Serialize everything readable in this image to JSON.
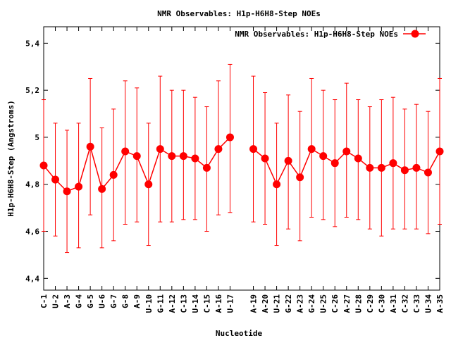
{
  "chart_data": {
    "type": "line",
    "title": "NMR Observables: H1p-H6H8-Step NOEs",
    "xlabel": "Nucleotide",
    "ylabel": "H1p-H6H8-Step (Angstroms)",
    "ylim": [
      4.35,
      5.47
    ],
    "yticks": [
      4.4,
      4.6,
      4.8,
      5,
      5.2,
      5.4
    ],
    "ytick_labels": [
      "4,4",
      "4,6",
      "4,8",
      "5",
      "5,2",
      "5,4"
    ],
    "legend_position": "top-right",
    "grid": false,
    "color": "#ff0000",
    "xticks": [
      {
        "label": "C-1",
        "pos": 1
      },
      {
        "label": "U-2",
        "pos": 2
      },
      {
        "label": "A-3",
        "pos": 3
      },
      {
        "label": "G-4",
        "pos": 4
      },
      {
        "label": "G-5",
        "pos": 5
      },
      {
        "label": "U-6",
        "pos": 6
      },
      {
        "label": "G-7",
        "pos": 7
      },
      {
        "label": "G-8",
        "pos": 8
      },
      {
        "label": "A-9",
        "pos": 9
      },
      {
        "label": "U-10",
        "pos": 10
      },
      {
        "label": "G-11",
        "pos": 11
      },
      {
        "label": "A-12",
        "pos": 12
      },
      {
        "label": "C-13",
        "pos": 13
      },
      {
        "label": "U-14",
        "pos": 14
      },
      {
        "label": "C-15",
        "pos": 15
      },
      {
        "label": "A-16",
        "pos": 16
      },
      {
        "label": "U-17",
        "pos": 17
      },
      {
        "label": "A-19",
        "pos": 19
      },
      {
        "label": "A-20",
        "pos": 20
      },
      {
        "label": "U-21",
        "pos": 21
      },
      {
        "label": "G-22",
        "pos": 22
      },
      {
        "label": "A-23",
        "pos": 23
      },
      {
        "label": "G-24",
        "pos": 24
      },
      {
        "label": "U-25",
        "pos": 25
      },
      {
        "label": "C-26",
        "pos": 26
      },
      {
        "label": "A-27",
        "pos": 27
      },
      {
        "label": "U-28",
        "pos": 28
      },
      {
        "label": "C-29",
        "pos": 29
      },
      {
        "label": "C-30",
        "pos": 30
      },
      {
        "label": "A-31",
        "pos": 31
      },
      {
        "label": "C-32",
        "pos": 32
      },
      {
        "label": "C-33",
        "pos": 33
      },
      {
        "label": "U-34",
        "pos": 34
      },
      {
        "label": "A-35",
        "pos": 35
      }
    ],
    "xlim": [
      1,
      35
    ],
    "series": [
      {
        "name": "NMR Observables: H1p-H6H8-Step NOEs",
        "segments": [
          [
            {
              "x": 1,
              "y": 4.88,
              "lo": 4.6,
              "hi": 5.16
            },
            {
              "x": 2,
              "y": 4.82,
              "lo": 4.58,
              "hi": 5.06
            },
            {
              "x": 3,
              "y": 4.77,
              "lo": 4.51,
              "hi": 5.03
            },
            {
              "x": 4,
              "y": 4.79,
              "lo": 4.53,
              "hi": 5.06
            },
            {
              "x": 5,
              "y": 4.96,
              "lo": 4.67,
              "hi": 5.25
            },
            {
              "x": 6,
              "y": 4.78,
              "lo": 4.53,
              "hi": 5.04
            },
            {
              "x": 7,
              "y": 4.84,
              "lo": 4.56,
              "hi": 5.12
            },
            {
              "x": 8,
              "y": 4.94,
              "lo": 4.63,
              "hi": 5.24
            },
            {
              "x": 9,
              "y": 4.92,
              "lo": 4.64,
              "hi": 5.21
            },
            {
              "x": 10,
              "y": 4.8,
              "lo": 4.54,
              "hi": 5.06
            },
            {
              "x": 11,
              "y": 4.95,
              "lo": 4.64,
              "hi": 5.26
            },
            {
              "x": 12,
              "y": 4.92,
              "lo": 4.64,
              "hi": 5.2
            },
            {
              "x": 13,
              "y": 4.92,
              "lo": 4.65,
              "hi": 5.2
            },
            {
              "x": 14,
              "y": 4.91,
              "lo": 4.65,
              "hi": 5.17
            },
            {
              "x": 15,
              "y": 4.87,
              "lo": 4.6,
              "hi": 5.13
            },
            {
              "x": 16,
              "y": 4.95,
              "lo": 4.67,
              "hi": 5.24
            },
            {
              "x": 17,
              "y": 5.0,
              "lo": 4.68,
              "hi": 5.31
            }
          ],
          [
            {
              "x": 19,
              "y": 4.95,
              "lo": 4.64,
              "hi": 5.26
            },
            {
              "x": 20,
              "y": 4.91,
              "lo": 4.63,
              "hi": 5.19
            },
            {
              "x": 21,
              "y": 4.8,
              "lo": 4.54,
              "hi": 5.06
            },
            {
              "x": 22,
              "y": 4.9,
              "lo": 4.61,
              "hi": 5.18
            },
            {
              "x": 23,
              "y": 4.83,
              "lo": 4.56,
              "hi": 5.11
            },
            {
              "x": 24,
              "y": 4.95,
              "lo": 4.66,
              "hi": 5.25
            },
            {
              "x": 25,
              "y": 4.92,
              "lo": 4.65,
              "hi": 5.2
            },
            {
              "x": 26,
              "y": 4.89,
              "lo": 4.62,
              "hi": 5.16
            },
            {
              "x": 27,
              "y": 4.94,
              "lo": 4.66,
              "hi": 5.23
            },
            {
              "x": 28,
              "y": 4.91,
              "lo": 4.65,
              "hi": 5.16
            },
            {
              "x": 29,
              "y": 4.87,
              "lo": 4.61,
              "hi": 5.13
            },
            {
              "x": 30,
              "y": 4.87,
              "lo": 4.58,
              "hi": 5.16
            },
            {
              "x": 31,
              "y": 4.89,
              "lo": 4.61,
              "hi": 5.17
            },
            {
              "x": 32,
              "y": 4.86,
              "lo": 4.61,
              "hi": 5.12
            },
            {
              "x": 33,
              "y": 4.87,
              "lo": 4.61,
              "hi": 5.14
            },
            {
              "x": 34,
              "y": 4.85,
              "lo": 4.59,
              "hi": 5.11
            },
            {
              "x": 35,
              "y": 4.94,
              "lo": 4.63,
              "hi": 5.25
            }
          ]
        ]
      }
    ]
  }
}
